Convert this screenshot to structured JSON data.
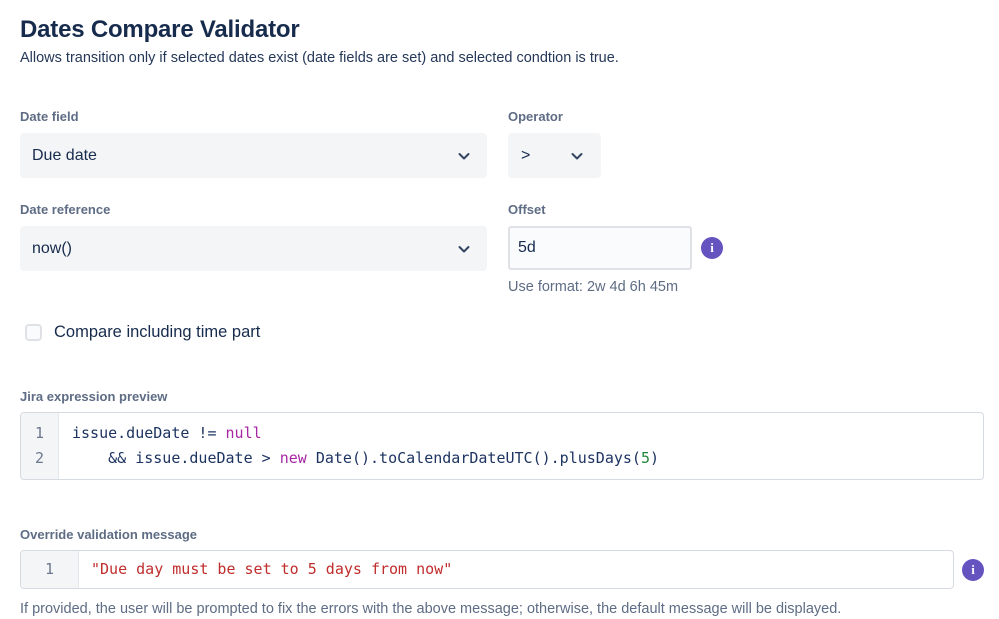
{
  "page": {
    "title": "Dates Compare Validator",
    "subtitle": "Allows transition only if selected dates exist (date fields are set) and selected condtion is true."
  },
  "fields": {
    "date_field": {
      "label": "Date field",
      "value": "Due date"
    },
    "operator": {
      "label": "Operator",
      "value": ">"
    },
    "date_reference": {
      "label": "Date reference",
      "value": "now()"
    },
    "offset": {
      "label": "Offset",
      "value": "5d",
      "help": "Use format: 2w 4d 6h 45m"
    }
  },
  "time_part_checkbox": {
    "label": "Compare including time part",
    "checked": false
  },
  "expression_preview": {
    "label": "Jira expression preview",
    "lines": [
      {
        "number": "1",
        "tokens": [
          {
            "t": "issue.dueDate != ",
            "c": "plain"
          },
          {
            "t": "null",
            "c": "keyword"
          }
        ]
      },
      {
        "number": "2",
        "tokens": [
          {
            "t": "    && issue.dueDate > ",
            "c": "plain"
          },
          {
            "t": "new",
            "c": "keyword"
          },
          {
            "t": " Date().toCalendarDateUTC().plusDays(",
            "c": "plain"
          },
          {
            "t": "5",
            "c": "number"
          },
          {
            "t": ")",
            "c": "plain"
          }
        ]
      }
    ]
  },
  "override_message": {
    "label": "Override validation message",
    "lines": [
      {
        "number": "1",
        "tokens": [
          {
            "t": "\"Due day must be set to 5 days from now\"",
            "c": "string"
          }
        ]
      }
    ],
    "help": "If provided, the user will be prompted to fix the errors with the above message; otherwise, the default message will be displayed."
  },
  "icons": {
    "info_glyph": "i"
  },
  "colors": {
    "heading": "#172B4D",
    "label": "#5E6C84",
    "select_bg": "#F4F5F7",
    "input_border": "#DFE1E6",
    "accent_purple": "#6554C0",
    "code_keyword": "#A626A4",
    "code_number": "#22863A",
    "code_string": "#C02D2D"
  }
}
